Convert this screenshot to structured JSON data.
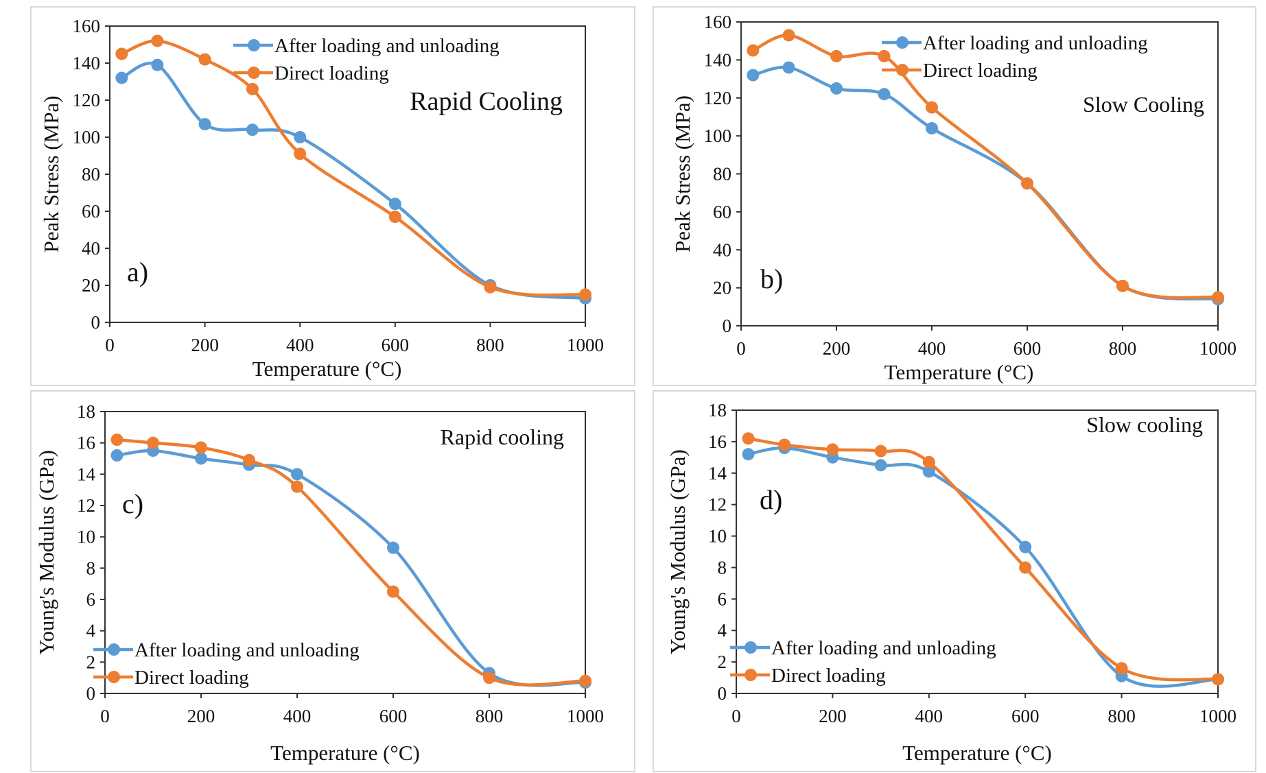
{
  "chart_data": [
    {
      "type": "line",
      "panel_label": "a)",
      "annotation": "Rapid Cooling",
      "xlabel": "Temperature (°C)",
      "ylabel": "Peak Stress (MPa)",
      "xlim": [
        0,
        1000
      ],
      "ylim": [
        0,
        160
      ],
      "xticks": [
        0,
        200,
        400,
        600,
        800,
        1000
      ],
      "yticks": [
        0,
        20,
        40,
        60,
        80,
        100,
        120,
        140,
        160
      ],
      "legend_position": "top-right",
      "x": [
        25,
        100,
        200,
        300,
        400,
        600,
        800,
        1000
      ],
      "series": [
        {
          "name": "After loading and unloading",
          "color": "#5b9bd5",
          "values": [
            132,
            139,
            107,
            104,
            100,
            64,
            20,
            13
          ]
        },
        {
          "name": "Direct loading",
          "color": "#ed7d31",
          "values": [
            145,
            152,
            142,
            126,
            91,
            57,
            19,
            15
          ]
        }
      ]
    },
    {
      "type": "line",
      "panel_label": "b)",
      "annotation": "Slow Cooling",
      "xlabel": "Temperature (°C)",
      "ylabel": "Peak Stress (MPa)",
      "xlim": [
        0,
        1000
      ],
      "ylim": [
        0,
        160
      ],
      "xticks": [
        0,
        200,
        400,
        600,
        800,
        1000
      ],
      "yticks": [
        0,
        20,
        40,
        60,
        80,
        100,
        120,
        140,
        160
      ],
      "legend_position": "top-right",
      "x": [
        25,
        100,
        200,
        300,
        400,
        600,
        800,
        1000
      ],
      "series": [
        {
          "name": "After loading and unloading",
          "color": "#5b9bd5",
          "values": [
            132,
            136,
            125,
            122,
            104,
            75,
            21,
            14
          ]
        },
        {
          "name": "Direct loading",
          "color": "#ed7d31",
          "values": [
            145,
            153,
            142,
            142,
            115,
            75,
            21,
            15
          ]
        }
      ]
    },
    {
      "type": "line",
      "panel_label": "c)",
      "annotation": "Rapid cooling",
      "xlabel": "Temperature (°C)",
      "ylabel": "Young's Modulus (GPa)",
      "xlim": [
        0,
        1000
      ],
      "ylim": [
        0,
        18
      ],
      "xticks": [
        0,
        200,
        400,
        600,
        800,
        1000
      ],
      "yticks": [
        0,
        2,
        4,
        6,
        8,
        10,
        12,
        14,
        16,
        18
      ],
      "legend_position": "bottom-left",
      "x": [
        25,
        100,
        200,
        300,
        400,
        600,
        800,
        1000
      ],
      "series": [
        {
          "name": "After loading and unloading",
          "color": "#5b9bd5",
          "values": [
            15.2,
            15.5,
            15.0,
            14.6,
            14.0,
            9.3,
            1.3,
            0.7
          ]
        },
        {
          "name": "Direct loading",
          "color": "#ed7d31",
          "values": [
            16.2,
            16.0,
            15.7,
            14.9,
            13.2,
            6.5,
            1.0,
            0.8
          ]
        }
      ]
    },
    {
      "type": "line",
      "panel_label": "d)",
      "annotation": "Slow cooling",
      "xlabel": "Temperature (°C)",
      "ylabel": "Young's Modulus (GPa)",
      "xlim": [
        0,
        1000
      ],
      "ylim": [
        0,
        18
      ],
      "xticks": [
        0,
        200,
        400,
        600,
        800,
        1000
      ],
      "yticks": [
        0,
        2,
        4,
        6,
        8,
        10,
        12,
        14,
        16,
        18
      ],
      "legend_position": "bottom-left",
      "x": [
        25,
        100,
        200,
        300,
        400,
        600,
        800,
        1000
      ],
      "series": [
        {
          "name": "After loading and unloading",
          "color": "#5b9bd5",
          "values": [
            15.2,
            15.6,
            15.0,
            14.5,
            14.1,
            9.3,
            1.1,
            0.9
          ]
        },
        {
          "name": "Direct loading",
          "color": "#ed7d31",
          "values": [
            16.2,
            15.8,
            15.5,
            15.4,
            14.7,
            8.0,
            1.6,
            0.9
          ]
        }
      ]
    }
  ]
}
